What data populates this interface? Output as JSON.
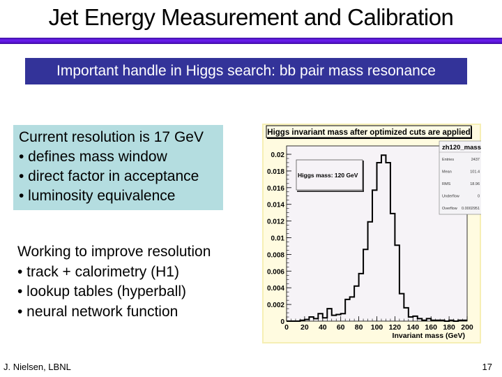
{
  "slide": {
    "title": "Jet Energy Measurement and Calibration",
    "banner": "Important handle in Higgs search: bb pair mass resonance",
    "box1": {
      "heading": "Current resolution is 17 GeV",
      "bullets": [
        "• defines mass window",
        "• direct factor in acceptance",
        "• luminosity equivalence"
      ]
    },
    "box2": {
      "heading": "Working to improve resolution",
      "bullets": [
        "• track + calorimetry (H1)",
        "• lookup tables (hyperball)",
        "• neural network function"
      ]
    },
    "footer": {
      "author": "J. Nielsen, LBNL",
      "page_number": "17"
    },
    "colors": {
      "title_rule": "#5a14d8",
      "banner_bg": "#333399",
      "box1_bg": "#b4dde0"
    }
  },
  "chart_data": {
    "type": "bar",
    "style": "step-histogram",
    "title": "Higgs invariant mass after optimized cuts are applied",
    "xlabel": "Invariant mass (GeV)",
    "ylabel": "",
    "xlim": [
      0,
      200
    ],
    "ylim": [
      0,
      0.021
    ],
    "bin_width": 5,
    "x_ticks": [
      0,
      20,
      40,
      60,
      80,
      100,
      120,
      140,
      160,
      180,
      200
    ],
    "y_ticks": [
      0,
      0.002,
      0.004,
      0.006,
      0.008,
      0.01,
      0.012,
      0.014,
      0.016,
      0.018,
      0.02
    ],
    "y_tick_labels": [
      "0",
      "0.002",
      "0.004",
      "0.006",
      "0.008",
      "0.01",
      "0.012",
      "0.014",
      "0.016",
      "0.018",
      "0.02"
    ],
    "bin_edges": [
      0,
      5,
      10,
      15,
      20,
      25,
      30,
      35,
      40,
      45,
      50,
      55,
      60,
      65,
      70,
      75,
      80,
      85,
      90,
      95,
      100,
      105,
      110,
      115,
      120,
      125,
      130,
      135,
      140,
      145,
      150,
      155,
      160,
      165,
      170,
      175,
      180,
      185,
      190,
      195,
      200
    ],
    "values": [
      0,
      0,
      0,
      0.0001,
      0.0002,
      0.0005,
      0.0003,
      0.0009,
      0.0004,
      0.0015,
      0.0007,
      0.0008,
      0.0009,
      0.0026,
      0.0029,
      0.0042,
      0.0057,
      0.0086,
      0.0119,
      0.0157,
      0.019,
      0.0199,
      0.019,
      0.0129,
      0.0091,
      0.0033,
      0.0016,
      0.0005,
      0.0006,
      0.0003,
      0.0001,
      0.0003,
      0.0001,
      0.0001,
      0.0001,
      0,
      0.0001,
      0,
      0.0001,
      0.0001
    ],
    "annotation": "Higgs mass: 120 GeV",
    "stats_box": {
      "name": "zh120_mass",
      "rows": [
        {
          "label": "Entries",
          "value": "2437"
        },
        {
          "label": "Mean",
          "value": "101.4"
        },
        {
          "label": "RMS",
          "value": "18.96"
        },
        {
          "label": "Underflow",
          "value": "0"
        },
        {
          "label": "Overflow",
          "value": "0.0002951"
        }
      ]
    },
    "grid": false,
    "legend_position": "top-right"
  }
}
